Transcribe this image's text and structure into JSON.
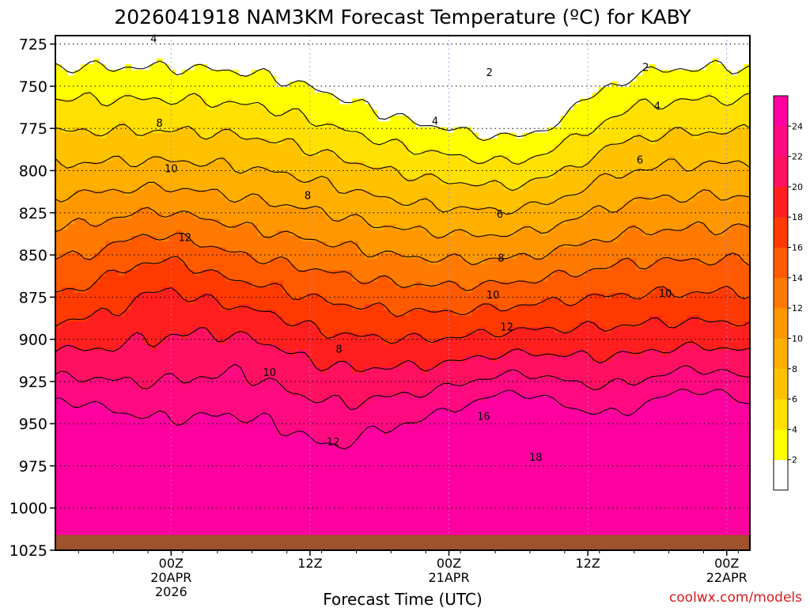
{
  "chart_data": {
    "type": "heatmap",
    "title": "2026041918 NAM3KM Forecast Temperature (ºC) for KABY",
    "xlabel": "Forecast Time (UTC)",
    "ylabel": "",
    "credit": "coolwx.com/models",
    "y_axis": {
      "unit": "hPa",
      "reversed": true,
      "range": [
        720,
        1025
      ],
      "ticks": [
        725,
        750,
        775,
        800,
        825,
        850,
        875,
        900,
        925,
        950,
        975,
        1000,
        1025
      ]
    },
    "x_axis": {
      "range_hours": [
        -10,
        50
      ],
      "ticks": [
        {
          "hour": 0,
          "label": "00Z",
          "date": "20APR",
          "year": "2026"
        },
        {
          "hour": 12,
          "label": "12Z",
          "date": "",
          "year": ""
        },
        {
          "hour": 24,
          "label": "00Z",
          "date": "21APR",
          "year": ""
        },
        {
          "hour": 36,
          "label": "12Z",
          "date": "",
          "year": ""
        },
        {
          "hour": 48,
          "label": "00Z",
          "date": "22APR",
          "year": ""
        }
      ]
    },
    "grid": true,
    "colorbar": {
      "ticks": [
        2,
        4,
        6,
        8,
        10,
        12,
        14,
        16,
        18,
        20,
        22,
        24
      ],
      "levels": [
        {
          "min": null,
          "max": 2,
          "color": "#ffffff"
        },
        {
          "min": 2,
          "max": 4,
          "color": "#ffff00"
        },
        {
          "min": 4,
          "max": 6,
          "color": "#ffe000"
        },
        {
          "min": 6,
          "max": 8,
          "color": "#ffc200"
        },
        {
          "min": 8,
          "max": 10,
          "color": "#ffaf00"
        },
        {
          "min": 10,
          "max": 12,
          "color": "#ff9800"
        },
        {
          "min": 12,
          "max": 14,
          "color": "#ff7a00"
        },
        {
          "min": 14,
          "max": 16,
          "color": "#ff5a00"
        },
        {
          "min": 16,
          "max": 18,
          "color": "#ff3a00"
        },
        {
          "min": 18,
          "max": 20,
          "color": "#ff1f1f"
        },
        {
          "min": 20,
          "max": 22,
          "color": "#ff1060"
        },
        {
          "min": 22,
          "max": 24,
          "color": "#ff0a80"
        },
        {
          "min": 24,
          "max": null,
          "color": "#ff00a0"
        }
      ]
    },
    "ground_color": "#a0522d",
    "ground_pressure_hpa": 1016,
    "contour_labels": [
      {
        "value": "4",
        "hour": -1.5,
        "p": 722
      },
      {
        "value": "2",
        "hour": 27.5,
        "p": 742
      },
      {
        "value": "2",
        "hour": 41,
        "p": 739
      },
      {
        "value": "4",
        "hour": 22.8,
        "p": 771
      },
      {
        "value": "4",
        "hour": 42,
        "p": 762
      },
      {
        "value": "8",
        "hour": -1,
        "p": 772
      },
      {
        "value": "6",
        "hour": 40.5,
        "p": 794
      },
      {
        "value": "10",
        "hour": 0,
        "p": 799
      },
      {
        "value": "8",
        "hour": 11.8,
        "p": 815
      },
      {
        "value": "6",
        "hour": 28.4,
        "p": 826
      },
      {
        "value": "12",
        "hour": 1.2,
        "p": 840
      },
      {
        "value": "8",
        "hour": 28.5,
        "p": 852
      },
      {
        "value": "10",
        "hour": 27.8,
        "p": 874
      },
      {
        "value": "10",
        "hour": 42.7,
        "p": 873
      },
      {
        "value": "12",
        "hour": 29,
        "p": 893
      },
      {
        "value": "8",
        "hour": 14.5,
        "p": 906
      },
      {
        "value": "10",
        "hour": 8.5,
        "p": 920
      },
      {
        "value": "16",
        "hour": 27,
        "p": 946
      },
      {
        "value": "12",
        "hour": 14,
        "p": 961
      },
      {
        "value": "18",
        "hour": 31.5,
        "p": 970
      }
    ]
  }
}
